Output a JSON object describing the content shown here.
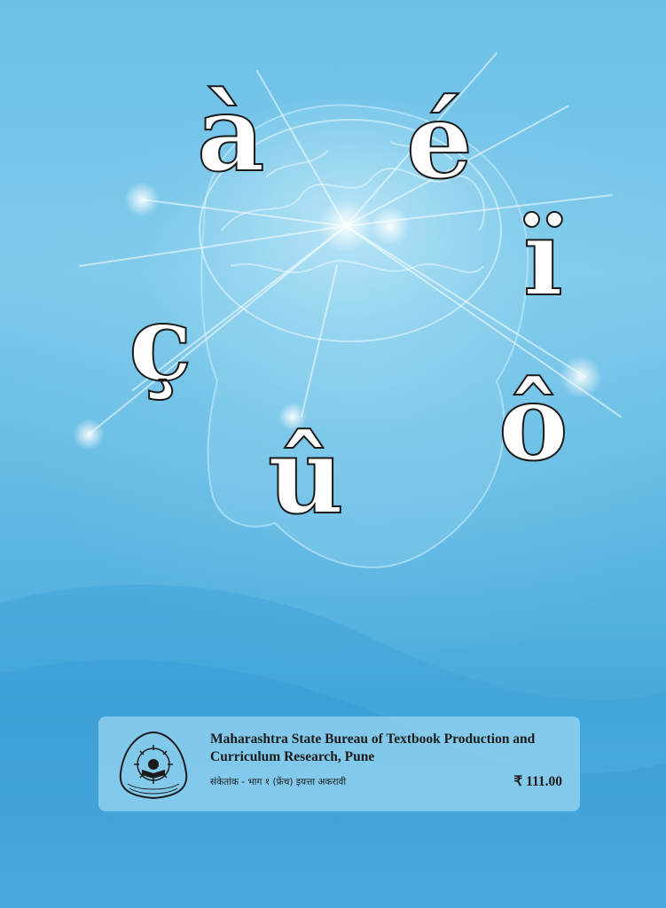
{
  "cover": {
    "letters": [
      "à",
      "é",
      "ï",
      "ç",
      "ô",
      "û"
    ],
    "colors": {
      "background": "#5cb6e2",
      "letter_fill": "#ffffff",
      "letter_outline": "#1a1a1a"
    }
  },
  "publisher": {
    "name": "Maharashtra State Bureau of Textbook Production and Curriculum Research, Pune",
    "subtitle": "संकेतांक - भाग १ (फ्रेंच) इयत्ता अकरावी",
    "price": "₹ 111.00"
  }
}
